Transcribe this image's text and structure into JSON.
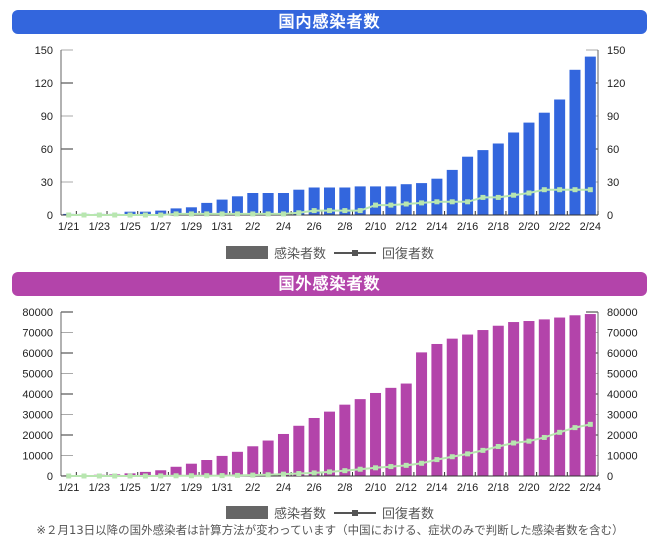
{
  "chart_data": [
    {
      "type": "bar",
      "title": "国内感染者数",
      "categories": [
        "1/21",
        "1/22",
        "1/23",
        "1/24",
        "1/25",
        "1/26",
        "1/27",
        "1/28",
        "1/29",
        "1/30",
        "1/31",
        "2/1",
        "2/2",
        "2/3",
        "2/4",
        "2/5",
        "2/6",
        "2/7",
        "2/8",
        "2/9",
        "2/10",
        "2/11",
        "2/12",
        "2/13",
        "2/14",
        "2/15",
        "2/16",
        "2/17",
        "2/18",
        "2/19",
        "2/20",
        "2/21",
        "2/22",
        "2/23",
        "2/24"
      ],
      "tick_labels": [
        "1/21",
        "1/23",
        "1/25",
        "1/27",
        "1/29",
        "1/31",
        "2/2",
        "2/4",
        "2/6",
        "2/8",
        "2/10",
        "2/12",
        "2/14",
        "2/16",
        "2/18",
        "2/20",
        "2/22",
        "2/24"
      ],
      "series": [
        {
          "name": "感染者数",
          "type": "bar",
          "color": "#3366dd",
          "values": [
            1,
            1,
            1,
            1,
            3,
            3,
            4,
            6,
            7,
            11,
            14,
            17,
            20,
            20,
            20,
            23,
            25,
            25,
            25,
            26,
            26,
            26,
            28,
            29,
            33,
            41,
            53,
            59,
            65,
            75,
            84,
            93,
            105,
            132,
            144
          ]
        },
        {
          "name": "回復者数",
          "type": "line",
          "color": "#b8e6b0",
          "values": [
            0,
            0,
            0,
            0,
            0,
            0,
            0,
            1,
            1,
            1,
            1,
            1,
            1,
            1,
            1,
            2,
            4,
            4,
            4,
            4,
            9,
            9,
            10,
            11,
            12,
            12,
            12,
            16,
            16,
            18,
            20,
            23,
            23,
            23,
            23
          ]
        }
      ],
      "ylim": [
        0,
        150
      ],
      "yticks": [
        "0",
        "30",
        "60",
        "90",
        "120",
        "150"
      ],
      "legend": "bottom"
    },
    {
      "type": "bar",
      "title": "国外感染者数",
      "categories": [
        "1/21",
        "1/22",
        "1/23",
        "1/24",
        "1/25",
        "1/26",
        "1/27",
        "1/28",
        "1/29",
        "1/30",
        "1/31",
        "2/1",
        "2/2",
        "2/3",
        "2/4",
        "2/5",
        "2/6",
        "2/7",
        "2/8",
        "2/9",
        "2/10",
        "2/11",
        "2/12",
        "2/13",
        "2/14",
        "2/15",
        "2/16",
        "2/17",
        "2/18",
        "2/19",
        "2/20",
        "2/21",
        "2/22",
        "2/23",
        "2/24"
      ],
      "tick_labels": [
        "1/21",
        "1/23",
        "1/25",
        "1/27",
        "1/29",
        "1/31",
        "2/2",
        "2/4",
        "2/6",
        "2/8",
        "2/10",
        "2/12",
        "2/14",
        "2/16",
        "2/18",
        "2/20",
        "2/22",
        "2/24"
      ],
      "series": [
        {
          "name": "感染者数",
          "type": "bar",
          "color": "#b344aa",
          "values": [
            300,
            300,
            600,
            800,
            1300,
            2000,
            2800,
            4500,
            6000,
            7800,
            9800,
            11800,
            14500,
            17300,
            20500,
            24500,
            28300,
            31400,
            34800,
            37500,
            40500,
            43000,
            45100,
            60300,
            64400,
            67000,
            69000,
            71200,
            73300,
            75100,
            75600,
            76400,
            77300,
            78400,
            79000
          ]
        },
        {
          "name": "回復者数",
          "type": "line",
          "color": "#b8e6b0",
          "values": [
            0,
            0,
            0,
            0,
            0,
            0,
            50,
            100,
            130,
            150,
            200,
            300,
            450,
            600,
            900,
            1200,
            1500,
            2000,
            2600,
            3300,
            4000,
            4600,
            5200,
            6200,
            8000,
            9400,
            10800,
            12500,
            14400,
            16100,
            17000,
            18800,
            21300,
            23600,
            25200
          ]
        }
      ],
      "ylim": [
        0,
        80000
      ],
      "yticks": [
        "0",
        "10000",
        "20000",
        "30000",
        "40000",
        "50000",
        "60000",
        "70000",
        "80000"
      ],
      "legend": "bottom"
    }
  ],
  "legend": {
    "infected": "感染者数",
    "recovered": "回復者数"
  },
  "footnote": "※２月13日以降の国外感染者は計算方法が変わっています（中国における、症状のみで判断した感染者数を含む）"
}
